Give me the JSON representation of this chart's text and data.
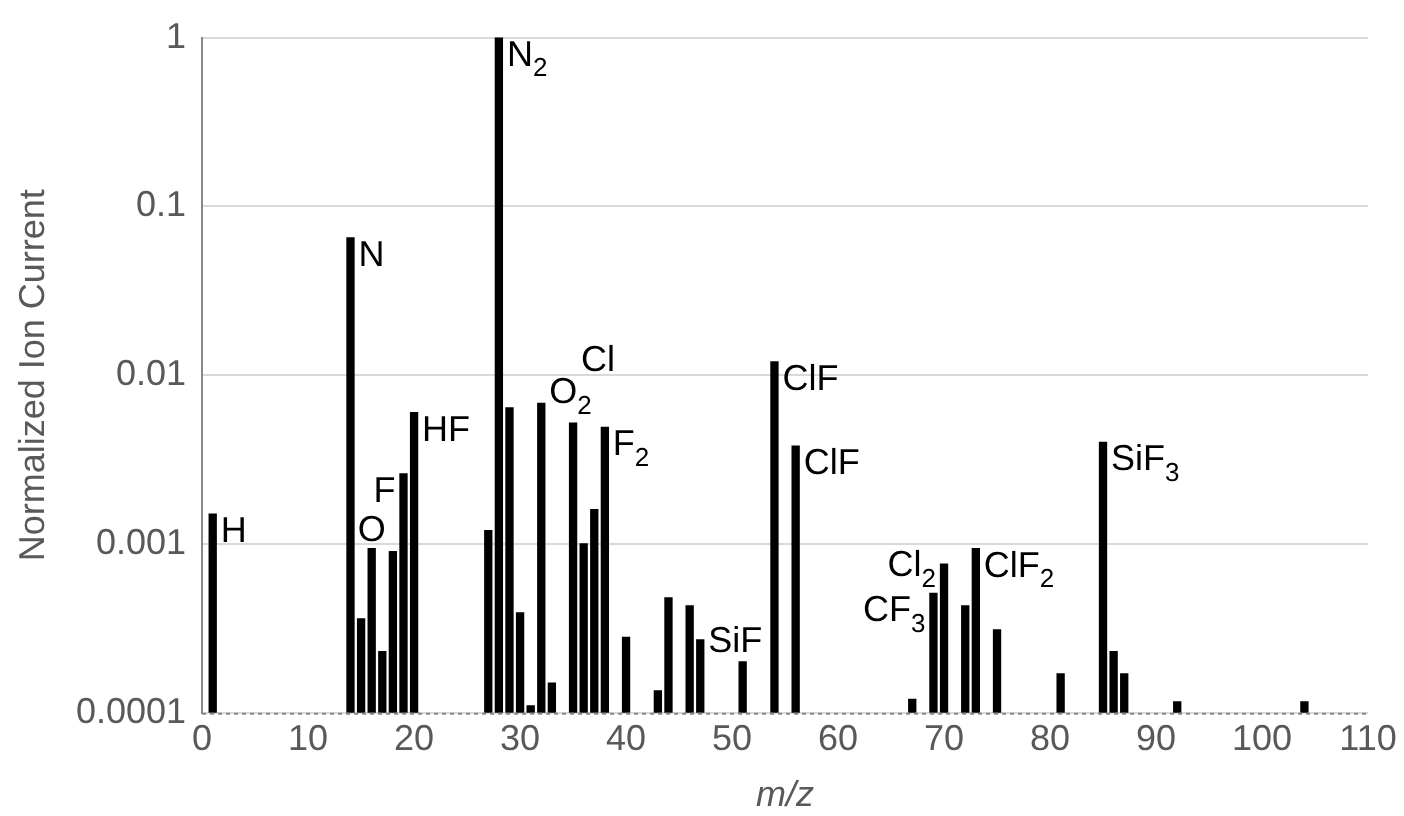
{
  "chart_data": {
    "type": "bar",
    "xlabel": "m/z",
    "ylabel": "Normalized Ion Current",
    "x": [
      1,
      14,
      15,
      16,
      17,
      18,
      19,
      20,
      27,
      28,
      29,
      30,
      31,
      32,
      33,
      35,
      36,
      37,
      38,
      40,
      43,
      44,
      46,
      47,
      51,
      54,
      56,
      67,
      69,
      70,
      72,
      73,
      75,
      81,
      85,
      86,
      87,
      92,
      104
    ],
    "values": [
      0.0015,
      0.065,
      0.00036,
      0.00094,
      0.00023,
      0.0009,
      0.0026,
      0.006,
      0.0012,
      1,
      0.0064,
      0.00039,
      0.00011,
      0.0068,
      0.00015,
      0.0052,
      0.001,
      0.0016,
      0.0049,
      0.00028,
      0.000135,
      0.00048,
      0.00043,
      0.00027,
      0.0002,
      0.012,
      0.0038,
      0.00012,
      0.00051,
      0.00076,
      0.00043,
      0.00094,
      0.00031,
      0.00017,
      0.004,
      0.00023,
      0.00017,
      0.000116,
      0.000116
    ],
    "color": "#000000",
    "xlim": [
      0,
      110
    ],
    "xticks": [
      0,
      10,
      20,
      30,
      40,
      50,
      60,
      70,
      80,
      90,
      100,
      110
    ],
    "ylim": [
      0.0001,
      1
    ],
    "yticks": [
      0.0001,
      0.001,
      0.01,
      0.1,
      1
    ],
    "log": "y",
    "grid": "y",
    "legend": false,
    "annotations": [
      {
        "text": "H",
        "x": 1,
        "y": 0.0015
      },
      {
        "text": "N",
        "x": 14,
        "y": 0.065
      },
      {
        "text": "O",
        "x": 16,
        "y": 0.00094
      },
      {
        "text": "F",
        "x": 19,
        "y": 0.0026
      },
      {
        "text": "HF",
        "x": 20,
        "y": 0.006
      },
      {
        "text": "N$_{2}$",
        "x": 28,
        "y": 1
      },
      {
        "text": "O$_{2}$",
        "x": 32,
        "y": 0.0068
      },
      {
        "text": "Cl",
        "x": 35,
        "y": 0.0052
      },
      {
        "text": "F$_{2}$",
        "x": 38,
        "y": 0.0049
      },
      {
        "text": "SiF",
        "x": 47,
        "y": 0.00027
      },
      {
        "text": "ClF",
        "x": 54,
        "y": 0.012
      },
      {
        "text": "ClF",
        "x": 56,
        "y": 0.0038
      },
      {
        "text": "CF$_{3}$",
        "x": 69,
        "y": 0.00051
      },
      {
        "text": "Cl$_{2}$",
        "x": 70,
        "y": 0.00076
      },
      {
        "text": "ClF$_{2}$",
        "x": 73,
        "y": 0.00094
      },
      {
        "text": "SiF$_{3}$",
        "x": 85,
        "y": 0.004
      }
    ]
  }
}
